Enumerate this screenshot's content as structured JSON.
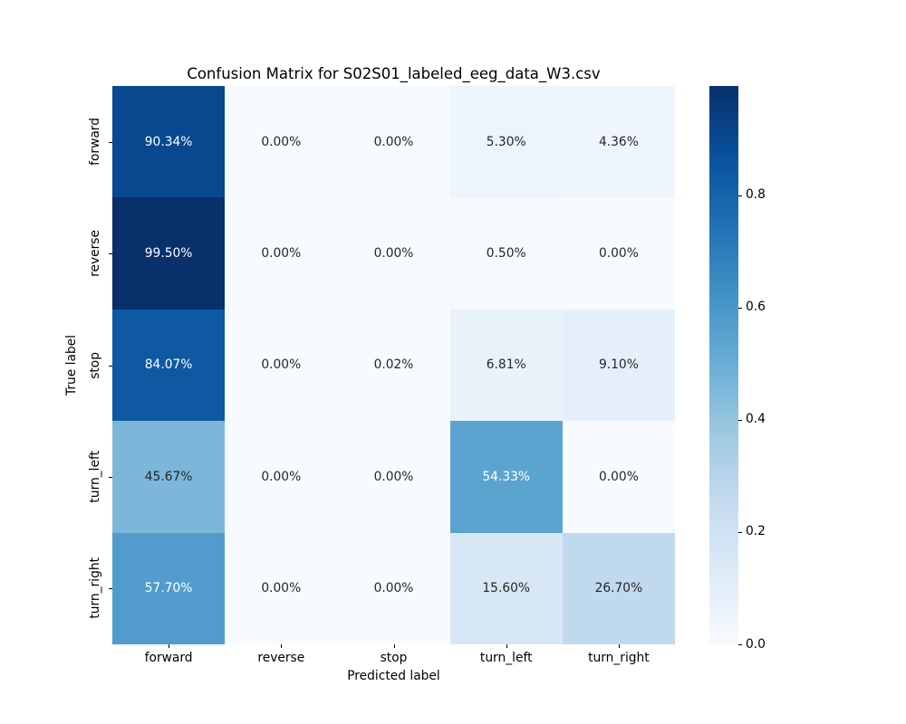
{
  "figure": {
    "title": "Confusion Matrix for S02S01_labeled_eeg_data_W3.csv",
    "xlabel": "Predicted label",
    "ylabel": "True label"
  },
  "chart_data": {
    "type": "heatmap",
    "title": "Confusion Matrix for S02S01_labeled_eeg_data_W3.csv",
    "xlabel": "Predicted label",
    "ylabel": "True label",
    "x_categories": [
      "forward",
      "reverse",
      "stop",
      "turn_left",
      "turn_right"
    ],
    "y_categories": [
      "forward",
      "reverse",
      "stop",
      "turn_left",
      "turn_right"
    ],
    "values_percent": [
      [
        90.34,
        0.0,
        0.0,
        5.3,
        4.36
      ],
      [
        99.5,
        0.0,
        0.0,
        0.5,
        0.0
      ],
      [
        84.07,
        0.0,
        0.02,
        6.81,
        9.1
      ],
      [
        45.67,
        0.0,
        0.0,
        54.33,
        0.0
      ],
      [
        57.7,
        0.0,
        0.0,
        15.6,
        26.7
      ]
    ],
    "annotation_format": "percent_2dp",
    "colormap": "Blues",
    "colormap_stops": [
      "#f7fbff",
      "#deebf7",
      "#c6dbef",
      "#9ecae1",
      "#6baed6",
      "#4292c6",
      "#2171b5",
      "#08519c",
      "#08306b"
    ],
    "vmin": 0.0,
    "vmax": 0.995,
    "colorbar_ticks": [
      0.0,
      0.2,
      0.4,
      0.6,
      0.8
    ],
    "grid": false,
    "legend_position": "right-colorbar"
  },
  "colors": {
    "background": "#ffffff",
    "annotation_dark": "#262626",
    "annotation_light": "#ffffff",
    "tick_color": "#000000"
  }
}
